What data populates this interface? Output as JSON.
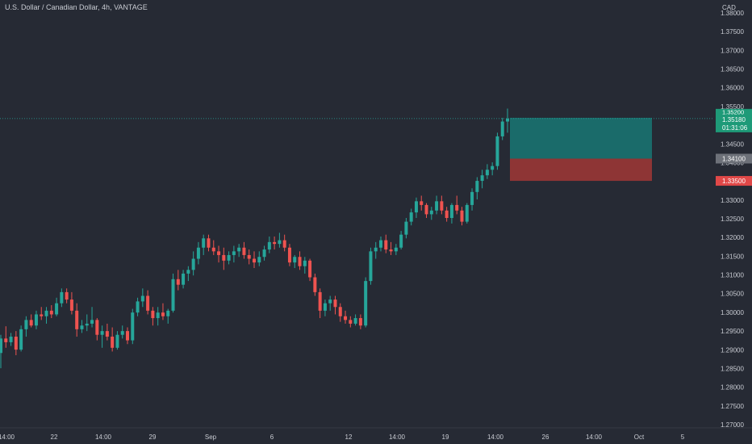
{
  "header": {
    "symbol_title": "U.S. Dollar / Canadian Dollar, 4h, VANTAGE",
    "currency": "CAD"
  },
  "colors": {
    "background": "#262a34",
    "up": "#26a69a",
    "down": "#ef5350",
    "text": "#c9ccd3",
    "target_zone": "#1a6b6a",
    "stop_zone": "#8e3535",
    "current_price_label": "#1e9a78",
    "entry_label": "#6d7179",
    "stop_label": "#e04848"
  },
  "chart_data": {
    "type": "candlestick",
    "price_axis_labels": [
      "1.38000",
      "1.37500",
      "1.37000",
      "1.36500",
      "1.36000",
      "1.35500",
      "1.35000",
      "1.34500",
      "1.34000",
      "1.33500",
      "1.33000",
      "1.32500",
      "1.32000",
      "1.31500",
      "1.31000",
      "1.30500",
      "1.30000",
      "1.29500",
      "1.29000",
      "1.28500",
      "1.28000",
      "1.27500",
      "1.27000"
    ],
    "time_axis_labels": [
      "14:00",
      "22",
      "14:00",
      "29",
      "Sep",
      "6",
      "12",
      "14:00",
      "19",
      "14:00",
      "26",
      "14:00",
      "Oct",
      "5"
    ],
    "ylim": [
      1.2695,
      1.3805
    ],
    "candles": [
      [
        1.2886,
        1.2935,
        1.2845,
        1.2925
      ],
      [
        1.2925,
        1.2958,
        1.29,
        1.2915
      ],
      [
        1.2915,
        1.294,
        1.2905,
        1.293
      ],
      [
        1.293,
        1.2945,
        1.288,
        1.2895
      ],
      [
        1.2895,
        1.296,
        1.289,
        1.295
      ],
      [
        1.295,
        1.2985,
        1.293,
        1.2975
      ],
      [
        1.2975,
        1.299,
        1.2955,
        1.296
      ],
      [
        1.296,
        1.3,
        1.295,
        1.299
      ],
      [
        1.299,
        1.301,
        1.2975,
        1.2985
      ],
      [
        1.2985,
        1.301,
        1.2965,
        1.3
      ],
      [
        1.3,
        1.3015,
        1.298,
        1.299
      ],
      [
        1.299,
        1.3035,
        1.2985,
        1.302
      ],
      [
        1.302,
        1.306,
        1.301,
        1.305
      ],
      [
        1.305,
        1.306,
        1.302,
        1.303
      ],
      [
        1.303,
        1.305,
        1.299,
        1.3
      ],
      [
        1.3,
        1.302,
        1.293,
        1.295
      ],
      [
        1.295,
        1.2975,
        1.294,
        1.296
      ],
      [
        1.296,
        1.299,
        1.2945,
        1.2965
      ],
      [
        1.2965,
        1.301,
        1.2955,
        1.2975
      ],
      [
        1.2975,
        1.298,
        1.292,
        1.2935
      ],
      [
        1.2935,
        1.296,
        1.29,
        1.2945
      ],
      [
        1.2945,
        1.2965,
        1.292,
        1.293
      ],
      [
        1.293,
        1.2955,
        1.289,
        1.29
      ],
      [
        1.29,
        1.2945,
        1.2895,
        1.2935
      ],
      [
        1.2935,
        1.296,
        1.2925,
        1.2945
      ],
      [
        1.2945,
        1.2955,
        1.291,
        1.292
      ],
      [
        1.292,
        1.3005,
        1.291,
        1.2995
      ],
      [
        1.2995,
        1.3035,
        1.2985,
        1.3025
      ],
      [
        1.3025,
        1.306,
        1.301,
        1.304
      ],
      [
        1.304,
        1.3055,
        1.299,
        1.3
      ],
      [
        1.3,
        1.301,
        1.296,
        1.298
      ],
      [
        1.298,
        1.301,
        1.296,
        1.2995
      ],
      [
        1.2995,
        1.302,
        1.2975,
        1.2985
      ],
      [
        1.2985,
        1.3005,
        1.2965,
        1.3
      ],
      [
        1.3,
        1.31,
        1.2995,
        1.3085
      ],
      [
        1.3085,
        1.311,
        1.3055,
        1.307
      ],
      [
        1.307,
        1.311,
        1.306,
        1.31
      ],
      [
        1.31,
        1.312,
        1.308,
        1.311
      ],
      [
        1.311,
        1.316,
        1.3095,
        1.314
      ],
      [
        1.314,
        1.3185,
        1.3125,
        1.317
      ],
      [
        1.317,
        1.3205,
        1.315,
        1.3195
      ],
      [
        1.3195,
        1.3205,
        1.316,
        1.317
      ],
      [
        1.317,
        1.319,
        1.315,
        1.316
      ],
      [
        1.316,
        1.3175,
        1.313,
        1.315
      ],
      [
        1.315,
        1.317,
        1.311,
        1.3135
      ],
      [
        1.3135,
        1.316,
        1.3125,
        1.315
      ],
      [
        1.315,
        1.3175,
        1.313,
        1.316
      ],
      [
        1.316,
        1.318,
        1.3145,
        1.317
      ],
      [
        1.317,
        1.3185,
        1.314,
        1.315
      ],
      [
        1.315,
        1.3165,
        1.3125,
        1.314
      ],
      [
        1.314,
        1.316,
        1.3115,
        1.313
      ],
      [
        1.313,
        1.316,
        1.312,
        1.3145
      ],
      [
        1.3145,
        1.3175,
        1.3135,
        1.3165
      ],
      [
        1.3165,
        1.32,
        1.3155,
        1.3185
      ],
      [
        1.3185,
        1.32,
        1.3165,
        1.318
      ],
      [
        1.318,
        1.321,
        1.317,
        1.319
      ],
      [
        1.319,
        1.3205,
        1.316,
        1.317
      ],
      [
        1.317,
        1.318,
        1.312,
        1.313
      ],
      [
        1.313,
        1.315,
        1.3115,
        1.3145
      ],
      [
        1.3145,
        1.316,
        1.311,
        1.312
      ],
      [
        1.312,
        1.3145,
        1.31,
        1.3135
      ],
      [
        1.3135,
        1.314,
        1.308,
        1.309
      ],
      [
        1.309,
        1.31,
        1.304,
        1.305
      ],
      [
        1.305,
        1.306,
        1.298,
        1.3
      ],
      [
        1.3,
        1.303,
        1.2985,
        1.302
      ],
      [
        1.302,
        1.304,
        1.3,
        1.303
      ],
      [
        1.303,
        1.304,
        1.299,
        1.301
      ],
      [
        1.301,
        1.302,
        1.297,
        1.2985
      ],
      [
        1.2985,
        1.3,
        1.2965,
        1.2975
      ],
      [
        1.2975,
        1.2985,
        1.2955,
        1.2965
      ],
      [
        1.2965,
        1.299,
        1.296,
        1.298
      ],
      [
        1.298,
        1.299,
        1.295,
        1.296
      ],
      [
        1.296,
        1.309,
        1.2955,
        1.308
      ],
      [
        1.308,
        1.317,
        1.307,
        1.316
      ],
      [
        1.316,
        1.3185,
        1.314,
        1.317
      ],
      [
        1.317,
        1.32,
        1.316,
        1.319
      ],
      [
        1.319,
        1.3205,
        1.3155,
        1.3165
      ],
      [
        1.3165,
        1.3185,
        1.315,
        1.316
      ],
      [
        1.316,
        1.318,
        1.315,
        1.317
      ],
      [
        1.317,
        1.3215,
        1.3165,
        1.3205
      ],
      [
        1.3205,
        1.325,
        1.3195,
        1.324
      ],
      [
        1.324,
        1.3275,
        1.323,
        1.3265
      ],
      [
        1.3265,
        1.3305,
        1.325,
        1.3295
      ],
      [
        1.3295,
        1.331,
        1.327,
        1.3285
      ],
      [
        1.3285,
        1.329,
        1.325,
        1.326
      ],
      [
        1.326,
        1.328,
        1.3245,
        1.327
      ],
      [
        1.327,
        1.331,
        1.326,
        1.3295
      ],
      [
        1.3295,
        1.331,
        1.326,
        1.327
      ],
      [
        1.327,
        1.328,
        1.324,
        1.325
      ],
      [
        1.325,
        1.329,
        1.3235,
        1.3285
      ],
      [
        1.3285,
        1.331,
        1.326,
        1.327
      ],
      [
        1.327,
        1.328,
        1.323,
        1.324
      ],
      [
        1.324,
        1.329,
        1.3235,
        1.3285
      ],
      [
        1.3285,
        1.333,
        1.327,
        1.332
      ],
      [
        1.332,
        1.336,
        1.33,
        1.335
      ],
      [
        1.335,
        1.338,
        1.333,
        1.3365
      ],
      [
        1.3365,
        1.3395,
        1.3355,
        1.338
      ],
      [
        1.338,
        1.34,
        1.3365,
        1.339
      ],
      [
        1.339,
        1.348,
        1.338,
        1.347
      ],
      [
        1.347,
        1.352,
        1.346,
        1.351
      ],
      [
        1.351,
        1.3545,
        1.348,
        1.3518
      ]
    ]
  },
  "price_labels": {
    "current_price": "1.35180",
    "countdown": "01:31:06",
    "entry": "1.34100",
    "stop": "1.33500",
    "partial_top": "1.35200"
  },
  "position": {
    "target": 1.352,
    "entry": 1.341,
    "stop": 1.335
  }
}
